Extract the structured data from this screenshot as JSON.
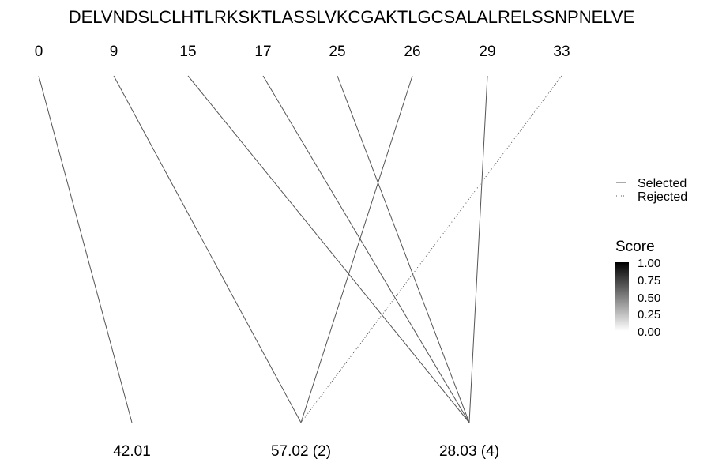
{
  "sequence": "DELVNDSLCLHTLRKSKTLASSLVKCGAKTLGCSALALRELSSNPNELVE",
  "top_positions": [
    "0",
    "9",
    "15",
    "17",
    "25",
    "26",
    "29",
    "33"
  ],
  "bottom_labels": [
    "42.01",
    "57.02 (2)",
    "28.03 (4)"
  ],
  "links": [
    {
      "from": 0,
      "to": 0,
      "status": "selected"
    },
    {
      "from": 1,
      "to": 1,
      "status": "selected"
    },
    {
      "from": 5,
      "to": 1,
      "status": "selected"
    },
    {
      "from": 7,
      "to": 1,
      "status": "rejected"
    },
    {
      "from": 2,
      "to": 2,
      "status": "selected"
    },
    {
      "from": 3,
      "to": 2,
      "status": "selected"
    },
    {
      "from": 4,
      "to": 2,
      "status": "selected"
    },
    {
      "from": 6,
      "to": 2,
      "status": "selected"
    }
  ],
  "legend": {
    "selected_label": "Selected",
    "rejected_label": "Rejected"
  },
  "score_scale": {
    "title": "Score",
    "ticks": [
      "1.00",
      "0.75",
      "0.50",
      "0.25",
      "0.00"
    ],
    "color_high": "#000000",
    "color_low": "#ffffff"
  },
  "line_color": "#555555"
}
